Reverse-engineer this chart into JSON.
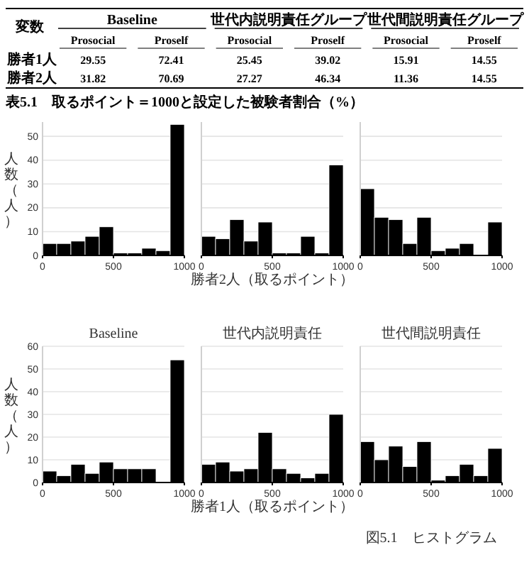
{
  "chart_data": [
    {
      "type": "other",
      "title": "表5.1　取るポイント＝1000と設定した被験者割合（%）",
      "annotations": [
        "変数",
        "Baseline",
        "世代内説明責任グループ",
        "世代間説明責任グループ"
      ],
      "categories": [
        "Prosocial",
        "Proself",
        "Prosocial",
        "Proself",
        "Prosocial",
        "Proself"
      ],
      "y_categories": [
        "勝者1人",
        "勝者2人"
      ],
      "cell_labels": [
        [
          "29.55",
          "72.41",
          "25.45",
          "39.02",
          "15.91",
          "14.55"
        ],
        [
          "31.82",
          "70.69",
          "27.27",
          "46.34",
          "11.36",
          "14.55"
        ]
      ]
    },
    {
      "type": "histogram",
      "bins": [
        0,
        100,
        200,
        300,
        400,
        500,
        600,
        700,
        800,
        900,
        1000
      ],
      "values": [
        5,
        5,
        6,
        8,
        12,
        1,
        1,
        3,
        2,
        55
      ],
      "color": "#000000",
      "xlim": [
        0,
        1000
      ],
      "xticks": [
        0,
        500,
        1000
      ],
      "ylim": [
        0,
        56
      ],
      "yticks": [
        0,
        10,
        20,
        30,
        40,
        50
      ],
      "grid": "y",
      "ylabel": "人数（人）"
    },
    {
      "type": "histogram",
      "bins": [
        0,
        100,
        200,
        300,
        400,
        500,
        600,
        700,
        800,
        900,
        1000
      ],
      "values": [
        8,
        7,
        15,
        6,
        14,
        1,
        1,
        8,
        1,
        38
      ],
      "color": "#000000",
      "xlim": [
        0,
        1000
      ],
      "xticks": [
        0,
        500,
        1000
      ],
      "ylim": [
        0,
        56
      ],
      "yticks": [
        0,
        10,
        20,
        30,
        40,
        50
      ],
      "grid": "y",
      "tick_labels": "x",
      "xlabel": "勝者2人（取るポイント）"
    },
    {
      "type": "histogram",
      "bins": [
        0,
        100,
        200,
        300,
        400,
        500,
        600,
        700,
        800,
        900,
        1000
      ],
      "values": [
        28,
        16,
        15,
        5,
        16,
        2,
        3,
        5,
        0,
        14
      ],
      "color": "#000000",
      "xlim": [
        0,
        1000
      ],
      "xticks": [
        0,
        500,
        1000
      ],
      "ylim": [
        0,
        56
      ],
      "yticks": [
        0,
        10,
        20,
        30,
        40,
        50
      ],
      "grid": "y",
      "tick_labels": "x"
    },
    {
      "type": "histogram",
      "title": "Baseline",
      "bins": [
        0,
        100,
        200,
        300,
        400,
        500,
        600,
        700,
        800,
        900,
        1000
      ],
      "values": [
        5,
        3,
        8,
        4,
        9,
        6,
        6,
        6,
        0,
        54
      ],
      "color": "#000000",
      "xlim": [
        0,
        1000
      ],
      "xticks": [
        0,
        500,
        1000
      ],
      "ylim": [
        0,
        60
      ],
      "yticks": [
        0,
        10,
        20,
        30,
        40,
        50,
        60
      ],
      "grid": "y",
      "ylabel": "人数（人）"
    },
    {
      "type": "histogram",
      "title": "世代内説明責任",
      "bins": [
        0,
        100,
        200,
        300,
        400,
        500,
        600,
        700,
        800,
        900,
        1000
      ],
      "values": [
        8,
        9,
        5,
        6,
        22,
        6,
        4,
        2,
        4,
        30
      ],
      "color": "#000000",
      "xlim": [
        0,
        1000
      ],
      "xticks": [
        0,
        500,
        1000
      ],
      "ylim": [
        0,
        60
      ],
      "yticks": [
        0,
        10,
        20,
        30,
        40,
        50,
        60
      ],
      "grid": "y",
      "tick_labels": "x",
      "xlabel": "勝者1人（取るポイント）"
    },
    {
      "type": "histogram",
      "title": "世代間説明責任",
      "bins": [
        0,
        100,
        200,
        300,
        400,
        500,
        600,
        700,
        800,
        900,
        1000
      ],
      "values": [
        18,
        10,
        16,
        7,
        18,
        1,
        3,
        8,
        3,
        15
      ],
      "color": "#000000",
      "xlim": [
        0,
        1000
      ],
      "xticks": [
        0,
        500,
        1000
      ],
      "ylim": [
        0,
        60
      ],
      "yticks": [
        0,
        10,
        20,
        30,
        40,
        50,
        60
      ],
      "grid": "y",
      "tick_labels": "x",
      "annotations": [
        "図5.1　ヒストグラム"
      ]
    }
  ]
}
